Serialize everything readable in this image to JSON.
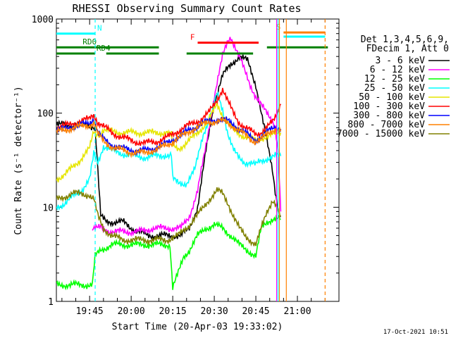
{
  "chart_data": {
    "type": "line",
    "title": "RHESSI Observing Summary Count Rates",
    "xlabel": "Start Time (20-Apr-03 19:33:02)",
    "ylabel": "Count Rate (s⁻¹ detector⁻¹)",
    "x_unit": "minutes after 19:33:02",
    "xlim": [
      0,
      102
    ],
    "ylim": [
      1,
      1000
    ],
    "yscale": "log",
    "x_ticks": [
      {
        "label": "19:45",
        "value": 12
      },
      {
        "label": "20:00",
        "value": 27
      },
      {
        "label": "20:15",
        "value": 42
      },
      {
        "label": "20:30",
        "value": 57
      },
      {
        "label": "20:45",
        "value": 72
      },
      {
        "label": "21:00",
        "value": 87
      }
    ],
    "y_ticks": [
      {
        "label": "1",
        "value": 1
      },
      {
        "label": "10",
        "value": 10
      },
      {
        "label": "100",
        "value": 100
      },
      {
        "label": "1000",
        "value": 1000
      }
    ],
    "legend_header": [
      "Det 1,3,4,5,6,9,",
      "FDecim 1, Att 0"
    ],
    "legend_placement": "right",
    "grid": false,
    "footer_date": "17-Oct-2021 10:51",
    "series": [
      {
        "name": "3 - 6 keV",
        "color": "#000000",
        "x": [
          0,
          5,
          10,
          14,
          16,
          18,
          21,
          24,
          27,
          30,
          33,
          36,
          39,
          42,
          45,
          48,
          51,
          54,
          57,
          60,
          63,
          66,
          69,
          72,
          74,
          76,
          78,
          79,
          80,
          81
        ],
        "y": [
          75,
          75,
          75,
          72,
          8,
          7,
          7,
          7,
          6,
          5.5,
          5,
          5,
          5,
          5,
          5,
          6,
          10,
          40,
          130,
          250,
          330,
          400,
          360,
          200,
          100,
          50,
          25,
          15,
          10,
          8
        ]
      },
      {
        "name": "6 - 12 keV",
        "color": "#ff00ff",
        "x": [
          13,
          14,
          16,
          20,
          25,
          30,
          35,
          40,
          45,
          48,
          51,
          54,
          57,
          60,
          62,
          63,
          64,
          66,
          68,
          70,
          72,
          74,
          76,
          78,
          79,
          80,
          81
        ],
        "y": [
          6,
          6,
          6,
          5.5,
          5.5,
          5.5,
          6,
          6,
          6,
          8,
          15,
          45,
          150,
          400,
          600,
          650,
          550,
          400,
          280,
          200,
          150,
          120,
          100,
          85,
          70,
          40,
          9
        ]
      },
      {
        "name": "12 - 25 keV",
        "color": "#00ff00",
        "x": [
          0,
          3,
          6,
          10,
          13,
          14,
          16,
          20,
          25,
          30,
          35,
          41,
          42,
          44,
          46,
          48,
          51,
          54,
          57,
          60,
          63,
          66,
          69,
          72,
          74,
          76,
          78,
          79,
          80,
          81
        ],
        "y": [
          1.5,
          1.5,
          1.5,
          1.5,
          1.5,
          3,
          3.5,
          4,
          4,
          4,
          4,
          4,
          1.4,
          2,
          3,
          3.5,
          5,
          6,
          6.5,
          6,
          5,
          4,
          3.5,
          3,
          6,
          7,
          7.5,
          7.5,
          7.5,
          7.5
        ]
      },
      {
        "name": "25 - 50 keV",
        "color": "#00ffff",
        "x": [
          0,
          3,
          6,
          9,
          12,
          13.5,
          15,
          17,
          20,
          24,
          28,
          32,
          36,
          40,
          41.5,
          42,
          44,
          47,
          50,
          53,
          56,
          58,
          60,
          62,
          64,
          66,
          68,
          70,
          72,
          73,
          76,
          79,
          81
        ],
        "y": [
          10,
          11,
          13,
          15,
          20,
          40,
          30,
          45,
          40,
          37,
          35,
          34,
          35,
          36,
          38,
          20,
          18,
          18,
          25,
          60,
          100,
          160,
          110,
          60,
          40,
          33,
          30,
          30,
          28,
          30,
          33,
          35,
          35
        ]
      },
      {
        "name": "50 - 100 keV",
        "color": "#e6e600",
        "x": [
          0,
          3,
          6,
          9,
          12,
          13.5,
          15,
          17,
          20,
          24,
          28,
          32,
          36,
          40,
          41.5,
          42,
          44,
          47,
          50,
          53,
          56,
          58,
          60,
          62,
          64,
          66,
          68,
          70,
          72,
          73,
          76,
          79,
          81
        ],
        "y": [
          20,
          22,
          27,
          33,
          42,
          65,
          60,
          66,
          64,
          62,
          62,
          62,
          62,
          62,
          64,
          45,
          42,
          48,
          58,
          72,
          95,
          125,
          95,
          80,
          65,
          60,
          57,
          55,
          50,
          53,
          57,
          60,
          62
        ]
      },
      {
        "name": "100 - 300 keV",
        "color": "#ff0000",
        "x": [
          0,
          3,
          6,
          9,
          12,
          13.5,
          15,
          17,
          20,
          24,
          28,
          32,
          36,
          40,
          44,
          48,
          52,
          55,
          58,
          60,
          62,
          64,
          66,
          68,
          70,
          72,
          74,
          76,
          78,
          79,
          80,
          81
        ],
        "y": [
          70,
          73,
          78,
          82,
          87,
          90,
          80,
          72,
          62,
          55,
          50,
          48,
          50,
          55,
          65,
          75,
          85,
          100,
          140,
          180,
          130,
          100,
          80,
          70,
          65,
          60,
          63,
          70,
          80,
          90,
          110,
          125
        ]
      },
      {
        "name": "300 - 800 keV",
        "color": "#0000ff",
        "x": [
          0,
          3,
          6,
          9,
          12,
          13.5,
          15,
          17,
          20,
          24,
          28,
          32,
          36,
          40,
          44,
          48,
          52,
          55,
          58,
          60,
          62,
          64,
          66,
          68,
          70,
          72,
          74,
          76,
          78,
          79,
          80,
          81
        ],
        "y": [
          65,
          68,
          72,
          75,
          78,
          80,
          62,
          52,
          46,
          42,
          40,
          40,
          43,
          48,
          56,
          66,
          76,
          82,
          85,
          85,
          82,
          76,
          68,
          62,
          56,
          52,
          56,
          62,
          70,
          72,
          70,
          68
        ]
      },
      {
        "name": "800 - 7000 keV",
        "color": "#ff8000",
        "x": [
          0,
          3,
          6,
          9,
          12,
          13.5,
          15,
          17,
          20,
          24,
          28,
          32,
          36,
          40,
          44,
          48,
          52,
          55,
          58,
          60,
          62,
          64,
          66,
          68,
          70,
          72,
          74,
          76,
          78,
          79,
          80,
          81
        ],
        "y": [
          63,
          66,
          70,
          72,
          75,
          77,
          60,
          50,
          44,
          40,
          38,
          38,
          41,
          46,
          54,
          64,
          74,
          80,
          82,
          82,
          78,
          72,
          65,
          59,
          53,
          50,
          53,
          59,
          66,
          68,
          66,
          64
        ]
      },
      {
        "name": "7000 - 15000 keV",
        "color": "#808000",
        "x": [
          0,
          3,
          6,
          9,
          12,
          13.5,
          15,
          17,
          20,
          24,
          28,
          32,
          36,
          40,
          44,
          48,
          52,
          55,
          58,
          60,
          62,
          64,
          66,
          68,
          70,
          72,
          74,
          76,
          78,
          79,
          80,
          81
        ],
        "y": [
          12,
          13,
          14,
          14,
          13.5,
          13,
          8,
          6,
          5,
          4.5,
          4.5,
          4.5,
          4.5,
          4.5,
          5,
          6.5,
          9,
          12,
          15,
          14,
          11,
          8,
          6,
          5,
          4.5,
          4,
          6,
          9,
          12,
          11,
          9,
          8
        ]
      }
    ],
    "annotations": {
      "N": {
        "label": "N",
        "color": "#00ffff",
        "y": 700,
        "segments": [
          [
            0,
            14
          ]
        ]
      },
      "S": {
        "label": "S",
        "color": "#ff8000",
        "y": 720,
        "segments": [
          [
            82,
            97
          ]
        ]
      },
      "S2": {
        "label": "",
        "color": "#00ffff",
        "y": 650,
        "segments": [
          [
            82,
            97
          ]
        ]
      },
      "F": {
        "label": "F",
        "color": "#ff0000",
        "y": 560,
        "segments": [
          [
            51,
            73
          ]
        ]
      },
      "RD0": {
        "label": "RD0",
        "color": "#008000",
        "y": 500,
        "segments": [
          [
            0,
            37
          ],
          [
            76,
            98
          ]
        ]
      },
      "RD4": {
        "label": "RD4",
        "color": "#008000",
        "y": 430,
        "segments": [
          [
            0,
            14
          ],
          [
            18,
            37
          ],
          [
            47,
            71
          ]
        ]
      },
      "vlines": [
        {
          "x": 14,
          "color": "#00ffff",
          "dash": true
        },
        {
          "x": 80,
          "color": "#00ffff",
          "dash": false
        },
        {
          "x": 80.5,
          "color": "#ff8000",
          "dash": false
        },
        {
          "x": 83,
          "color": "#ff8000",
          "dash": false
        },
        {
          "x": 97,
          "color": "#ff8000",
          "dash": true
        },
        {
          "x": 79.5,
          "color": "#ff00ff",
          "dash": false
        }
      ]
    }
  }
}
